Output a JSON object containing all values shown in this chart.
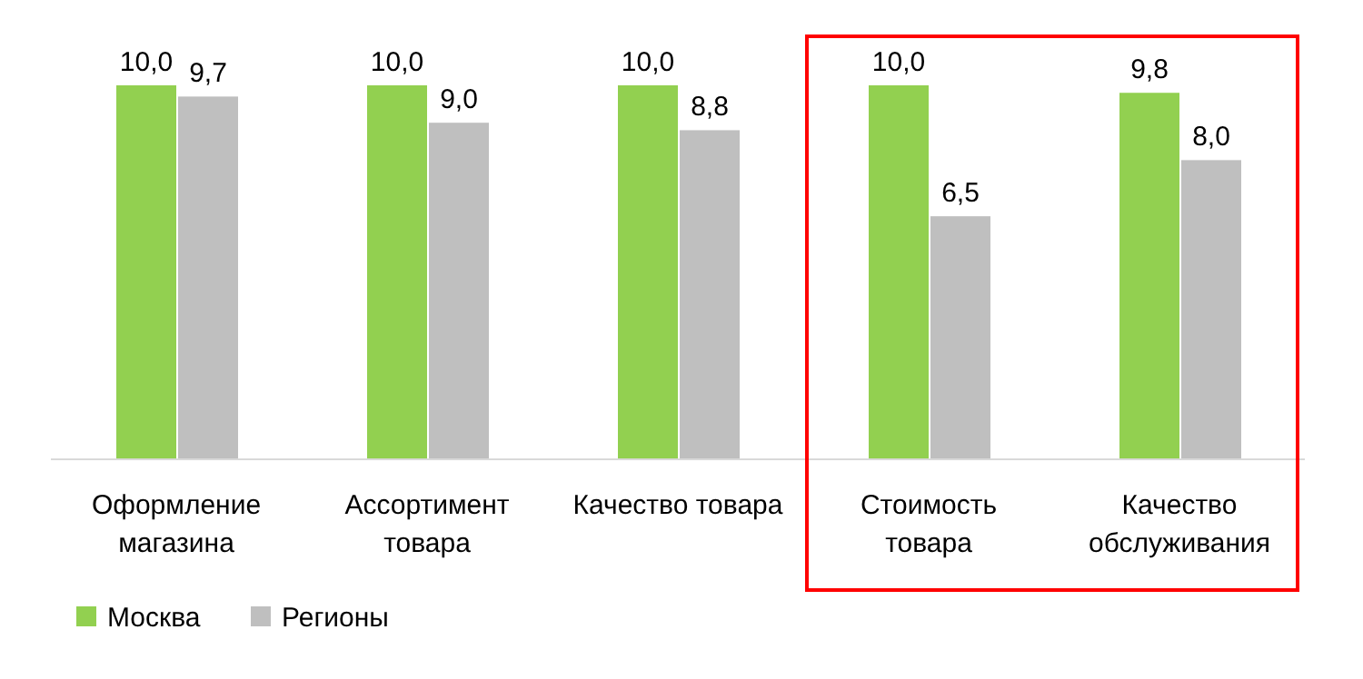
{
  "chart_data": {
    "type": "bar",
    "categories": [
      "Оформление магазина",
      "Ассортимент товара",
      "Качество товара",
      "Стоимость товара",
      "Качество обслуживания"
    ],
    "series": [
      {
        "name": "Москва",
        "color": "#92d050",
        "values": [
          10.0,
          10.0,
          10.0,
          10.0,
          9.8
        ],
        "value_labels": [
          "10,0",
          "10,0",
          "10,0",
          "10,0",
          "9,8"
        ]
      },
      {
        "name": "Регионы",
        "color": "#bfbfbf",
        "values": [
          9.7,
          9.0,
          8.8,
          6.5,
          8.0
        ],
        "value_labels": [
          "9,7",
          "9,0",
          "8,8",
          "6,5",
          "8,0"
        ]
      }
    ],
    "legend": "bottom left"
  }
}
